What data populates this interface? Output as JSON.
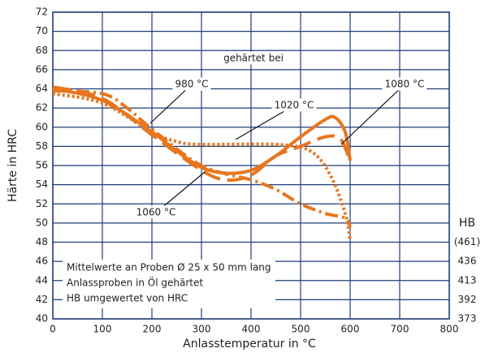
{
  "chart_data": {
    "type": "line",
    "xlabel": "Anlasstemperatur in °C",
    "ylabel": "Härte in HRC",
    "xlim": [
      0,
      800
    ],
    "xticks": [
      0,
      100,
      200,
      300,
      400,
      500,
      600,
      700,
      800
    ],
    "ylim": [
      40,
      72
    ],
    "yticks": [
      40,
      42,
      44,
      46,
      48,
      50,
      52,
      54,
      56,
      58,
      60,
      62,
      64,
      66,
      68,
      70,
      72
    ],
    "grid": true,
    "grid_color": "#1f3d7a",
    "annotation": "gehärtet bei",
    "note": [
      "Mittelwerte an Proben Ø 25 x 50 mm lang",
      "Anlassproben in Öl gehärtet",
      "HB umgewertet von HRC"
    ],
    "hb_scale": {
      "label": "HB",
      "hrc": [
        48,
        46,
        44,
        42,
        40
      ],
      "hb": [
        {
          "value": 461,
          "label": "(461)"
        },
        436,
        413,
        392,
        373
      ]
    },
    "series": [
      {
        "name": "980 °C",
        "color": "#e8761e",
        "dash": "dashdot",
        "x": [
          0,
          100,
          150,
          200,
          300,
          400,
          450,
          500,
          550,
          590,
          600
        ],
        "values": [
          63.8,
          63.5,
          62,
          59.8,
          56,
          54.5,
          53.5,
          52,
          51,
          50.5,
          49.5
        ]
      },
      {
        "name": "1020 °C",
        "color": "#e8761e",
        "dash": "dot",
        "x": [
          0,
          100,
          200,
          250,
          300,
          450,
          520,
          560,
          590,
          600
        ],
        "values": [
          63.5,
          62.5,
          59.5,
          58.5,
          58.2,
          58.2,
          57.5,
          55,
          51,
          48.2
        ]
      },
      {
        "name": "1060 °C",
        "color": "#e8761e",
        "dash": "solid",
        "x": [
          0,
          100,
          200,
          250,
          300,
          350,
          400,
          450,
          500,
          550,
          570,
          590,
          600
        ],
        "values": [
          64,
          62.8,
          59.5,
          57.5,
          55.8,
          55.2,
          55.5,
          57,
          59,
          60.8,
          61,
          59.5,
          56.5
        ]
      },
      {
        "name": "1080 °C",
        "color": "#e8761e",
        "dash": "long",
        "x": [
          0,
          100,
          200,
          300,
          350,
          400,
          450,
          500,
          550,
          580,
          600
        ],
        "values": [
          64.2,
          63,
          59.2,
          55.5,
          54.5,
          55,
          57,
          58,
          59,
          58.8,
          56.5
        ]
      }
    ]
  }
}
